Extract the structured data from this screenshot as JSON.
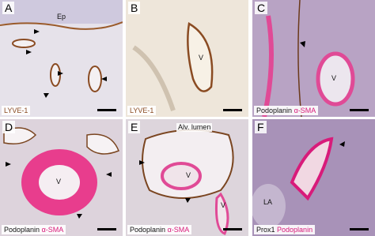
{
  "panels": [
    {
      "letter": "A",
      "annotations": [
        "Ep"
      ],
      "stain": [
        {
          "text": "LYVE-1",
          "color": "#8a4b22"
        }
      ]
    },
    {
      "letter": "B",
      "annotations": [
        "V"
      ],
      "stain": [
        {
          "text": "LYVE-1",
          "color": "#8a4b22"
        }
      ]
    },
    {
      "letter": "C",
      "annotations": [
        "V"
      ],
      "stain": [
        {
          "text": "Podoplanin",
          "color": "#111111"
        },
        {
          "text": "α-SMA",
          "color": "#d81b7a"
        }
      ]
    },
    {
      "letter": "D",
      "annotations": [
        "V"
      ],
      "stain": [
        {
          "text": "Podoplanin",
          "color": "#111111"
        },
        {
          "text": "α-SMA",
          "color": "#d81b7a"
        }
      ]
    },
    {
      "letter": "E",
      "annotations": [
        "Alv. lumen",
        "V",
        "V"
      ],
      "stain": [
        {
          "text": "Podoplanin",
          "color": "#111111"
        },
        {
          "text": "α-SMA",
          "color": "#d81b7a"
        }
      ]
    },
    {
      "letter": "F",
      "annotations": [
        "LA"
      ],
      "stain": [
        {
          "text": "Prox1",
          "color": "#111111"
        },
        {
          "text": "Podoplanin",
          "color": "#d81b7a"
        }
      ]
    }
  ]
}
